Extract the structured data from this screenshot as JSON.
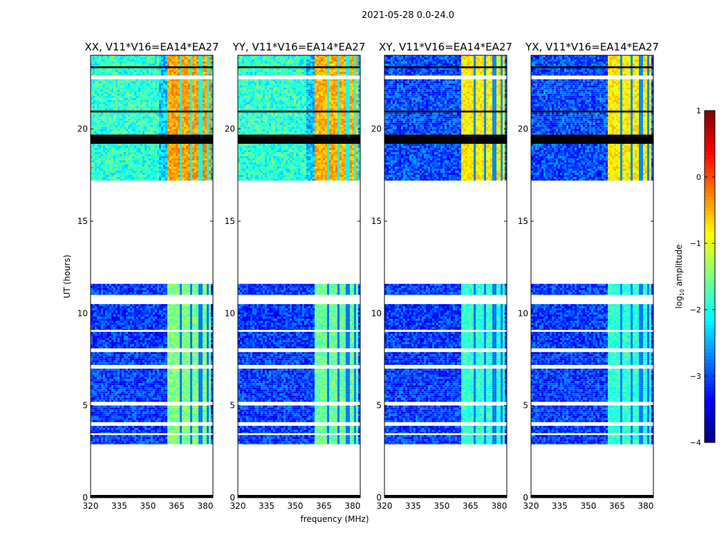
{
  "chart_data": {
    "type": "heatmap",
    "title": "2021-05-28 0.0-24.0",
    "xlabel": "frequency (MHz)",
    "ylabel": "UT (hours)",
    "xlim": [
      320,
      384
    ],
    "ylim": [
      0,
      24
    ],
    "xticks": [
      320,
      335,
      350,
      365,
      380
    ],
    "yticks": [
      0,
      5,
      10,
      15,
      20
    ],
    "colorbar": {
      "label": "log10 amplitude",
      "label_main": "log",
      "label_sub": "10",
      "label_rest": " amplitude",
      "range": [
        -4,
        1
      ],
      "ticks": [
        1,
        0,
        -1,
        -2,
        -3,
        -4
      ],
      "tick_labels": [
        "1",
        "0",
        "−1",
        "−2",
        "−3",
        "−4"
      ],
      "colormap": "jet"
    },
    "panels": [
      {
        "title": "XX, V11*V16=EA14*EA27",
        "low_band_level": -1.5,
        "high_band_level": -0.4,
        "high_bg": -2.4
      },
      {
        "title": "YY, V11*V16=EA14*EA27",
        "low_band_level": -1.6,
        "high_band_level": -0.5,
        "high_bg": -2.4
      },
      {
        "title": "XY, V11*V16=EA14*EA27",
        "low_band_level": -1.9,
        "high_band_level": -0.8,
        "high_bg": -3.0
      },
      {
        "title": "YX, V11*V16=EA14*EA27",
        "low_band_level": -1.9,
        "high_band_level": -0.8,
        "high_bg": -3.0
      }
    ],
    "band_mhz": [
      360,
      383
    ],
    "band_gaps_mhz": [
      367,
      372,
      377,
      381
    ],
    "segments_hours": [
      {
        "start": 2.9,
        "end": 3.4,
        "group": "low"
      },
      {
        "start": 3.5,
        "end": 3.9,
        "group": "low"
      },
      {
        "start": 4.1,
        "end": 5.0,
        "group": "low"
      },
      {
        "start": 5.2,
        "end": 7.0,
        "group": "low"
      },
      {
        "start": 7.2,
        "end": 7.9,
        "group": "low"
      },
      {
        "start": 8.1,
        "end": 9.0,
        "group": "low"
      },
      {
        "start": 9.1,
        "end": 10.5,
        "group": "low"
      },
      {
        "start": 11.0,
        "end": 11.6,
        "group": "low"
      },
      {
        "start": 17.2,
        "end": 19.2,
        "group": "high"
      },
      {
        "start": 19.7,
        "end": 20.9,
        "group": "high"
      },
      {
        "start": 21.0,
        "end": 22.7,
        "group": "high"
      },
      {
        "start": 22.9,
        "end": 24.0,
        "group": "high"
      }
    ],
    "flagged_black_hours": [
      [
        0.0,
        0.15
      ],
      [
        19.2,
        19.7
      ],
      [
        20.9,
        21.0
      ],
      [
        23.3,
        23.4
      ]
    ]
  }
}
